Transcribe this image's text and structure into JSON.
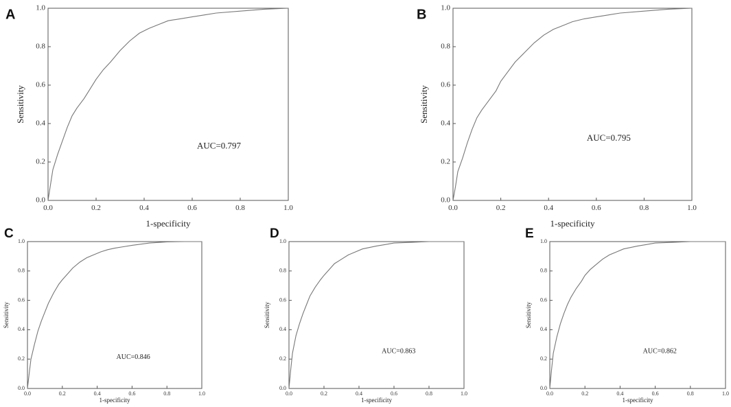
{
  "chart_data": [
    {
      "panel": "A",
      "type": "line",
      "xlabel": "1-specificity",
      "ylabel": "Sensitivity",
      "xlim": [
        0,
        1
      ],
      "ylim": [
        0,
        1
      ],
      "xticks": [
        "0.0",
        "0.2",
        "0.4",
        "0.6",
        "0.8",
        "1.0"
      ],
      "yticks": [
        "0.0",
        "0.2",
        "0.4",
        "0.6",
        "0.8",
        "1.0"
      ],
      "annotation": "AUC=0.797",
      "series": [
        {
          "x": [
            0,
            0.01,
            0.02,
            0.04,
            0.06,
            0.08,
            0.1,
            0.12,
            0.15,
            0.18,
            0.2,
            0.23,
            0.26,
            0.3,
            0.34,
            0.38,
            0.42,
            0.46,
            0.5,
            0.55,
            0.6,
            0.65,
            0.7,
            0.8,
            0.9,
            1.0
          ],
          "y": [
            0,
            0.08,
            0.16,
            0.24,
            0.31,
            0.38,
            0.44,
            0.48,
            0.53,
            0.59,
            0.63,
            0.68,
            0.72,
            0.78,
            0.83,
            0.87,
            0.895,
            0.915,
            0.935,
            0.945,
            0.955,
            0.965,
            0.975,
            0.985,
            0.995,
            1.0
          ]
        }
      ]
    },
    {
      "panel": "B",
      "type": "line",
      "xlabel": "1-specificity",
      "ylabel": "Sensitivity",
      "xlim": [
        0,
        1
      ],
      "ylim": [
        0,
        1
      ],
      "xticks": [
        "0.0",
        "0.2",
        "0.4",
        "0.6",
        "0.8",
        "1.0"
      ],
      "yticks": [
        "0.0",
        "0.2",
        "0.4",
        "0.6",
        "0.8",
        "1.0"
      ],
      "annotation": "AUC=0.795",
      "series": [
        {
          "x": [
            0,
            0.01,
            0.02,
            0.04,
            0.06,
            0.08,
            0.1,
            0.12,
            0.15,
            0.18,
            0.2,
            0.23,
            0.26,
            0.3,
            0.34,
            0.38,
            0.42,
            0.46,
            0.5,
            0.55,
            0.6,
            0.65,
            0.7,
            0.8,
            0.9,
            1.0
          ],
          "y": [
            0,
            0.07,
            0.15,
            0.22,
            0.3,
            0.37,
            0.43,
            0.47,
            0.52,
            0.57,
            0.62,
            0.67,
            0.72,
            0.77,
            0.82,
            0.86,
            0.89,
            0.91,
            0.93,
            0.945,
            0.955,
            0.965,
            0.975,
            0.985,
            0.995,
            1.0
          ]
        }
      ]
    },
    {
      "panel": "C",
      "type": "line",
      "xlabel": "1-specificity",
      "ylabel": "Sensitivity",
      "xlim": [
        0,
        1
      ],
      "ylim": [
        0,
        1
      ],
      "xticks": [
        "0.0",
        "0.2",
        "0.4",
        "0.6",
        "0.8",
        "1.0"
      ],
      "yticks": [
        "0.0",
        "0.2",
        "0.4",
        "0.6",
        "0.8",
        "1.0"
      ],
      "annotation": "AUC=0.846",
      "series": [
        {
          "x": [
            0,
            0.01,
            0.02,
            0.04,
            0.06,
            0.08,
            0.1,
            0.12,
            0.15,
            0.18,
            0.2,
            0.23,
            0.26,
            0.3,
            0.34,
            0.38,
            0.42,
            0.46,
            0.5,
            0.55,
            0.6,
            0.7,
            0.8,
            0.9,
            1.0
          ],
          "y": [
            0,
            0.1,
            0.2,
            0.3,
            0.39,
            0.46,
            0.52,
            0.58,
            0.65,
            0.71,
            0.74,
            0.78,
            0.82,
            0.86,
            0.89,
            0.91,
            0.93,
            0.945,
            0.955,
            0.965,
            0.975,
            0.99,
            0.998,
            1.0,
            1.0
          ]
        }
      ]
    },
    {
      "panel": "D",
      "type": "line",
      "xlabel": "1-specificity",
      "ylabel": "Sensitivity",
      "xlim": [
        0,
        1
      ],
      "ylim": [
        0,
        1
      ],
      "xticks": [
        "0.0",
        "0.2",
        "0.4",
        "0.6",
        "0.8",
        "1.0"
      ],
      "yticks": [
        "0.0",
        "0.2",
        "0.4",
        "0.6",
        "0.8",
        "1.0"
      ],
      "annotation": "AUC=0.863",
      "series": [
        {
          "x": [
            0,
            0.01,
            0.02,
            0.04,
            0.06,
            0.08,
            0.1,
            0.12,
            0.15,
            0.18,
            0.2,
            0.23,
            0.26,
            0.3,
            0.34,
            0.38,
            0.42,
            0.46,
            0.5,
            0.55,
            0.6,
            0.7,
            0.8,
            1.0
          ],
          "y": [
            0,
            0.13,
            0.24,
            0.36,
            0.44,
            0.51,
            0.57,
            0.63,
            0.69,
            0.74,
            0.77,
            0.81,
            0.85,
            0.88,
            0.91,
            0.93,
            0.95,
            0.96,
            0.97,
            0.98,
            0.99,
            0.995,
            1.0,
            1.0
          ]
        }
      ]
    },
    {
      "panel": "E",
      "type": "line",
      "xlabel": "1-specificity",
      "ylabel": "Sensitivity",
      "xlim": [
        0,
        1
      ],
      "ylim": [
        0,
        1
      ],
      "xticks": [
        "0.0",
        "0.2",
        "0.4",
        "0.6",
        "0.8",
        "1.0"
      ],
      "yticks": [
        "0.0",
        "0.2",
        "0.4",
        "0.6",
        "0.8",
        "1.0"
      ],
      "annotation": "AUC=0.862",
      "series": [
        {
          "x": [
            0,
            0.01,
            0.02,
            0.04,
            0.06,
            0.08,
            0.1,
            0.12,
            0.15,
            0.18,
            0.2,
            0.23,
            0.26,
            0.3,
            0.34,
            0.38,
            0.42,
            0.46,
            0.5,
            0.55,
            0.6,
            0.7,
            0.8,
            1.0
          ],
          "y": [
            0,
            0.13,
            0.24,
            0.35,
            0.44,
            0.51,
            0.57,
            0.62,
            0.68,
            0.73,
            0.77,
            0.81,
            0.84,
            0.88,
            0.91,
            0.93,
            0.95,
            0.96,
            0.97,
            0.98,
            0.99,
            0.995,
            1.0,
            1.0
          ]
        }
      ]
    }
  ]
}
